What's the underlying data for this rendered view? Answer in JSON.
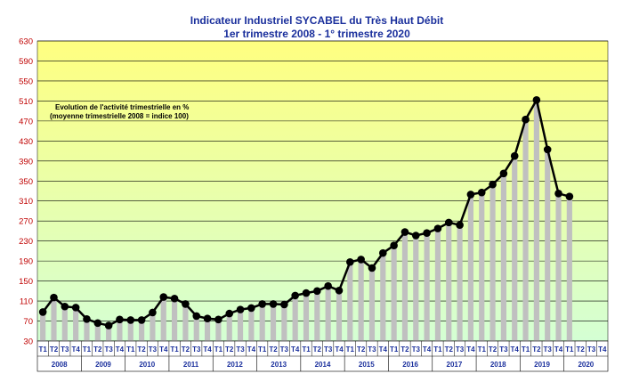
{
  "chart_data": {
    "type": "bar",
    "title": "Indicateur Industriel SYCABEL du Très Haut Débit",
    "subtitle": "1er trimestre 2008 - 1° trimestre 2020",
    "annotation": [
      "Evolution de l'activité trimestrielle en %",
      "(moyenne trimestrielle 2008 = indice 100)"
    ],
    "ylim": [
      30,
      630
    ],
    "yticks": [
      30,
      70,
      110,
      150,
      190,
      230,
      270,
      310,
      350,
      390,
      430,
      470,
      510,
      550,
      590,
      630
    ],
    "grid": true,
    "quarter_labels": [
      "T1",
      "T2",
      "T3",
      "T4"
    ],
    "years": [
      "2008",
      "2009",
      "2010",
      "2011",
      "2012",
      "2013",
      "2014",
      "2015",
      "2016",
      "2017",
      "2018",
      "2019",
      "2020"
    ],
    "values": [
      88,
      117,
      99,
      97,
      74,
      66,
      61,
      73,
      72,
      72,
      87,
      118,
      115,
      104,
      80,
      75,
      73,
      85,
      93,
      96,
      104,
      104,
      103,
      121,
      126,
      130,
      140,
      131,
      188,
      193,
      176,
      206,
      221,
      248,
      241,
      246,
      255,
      267,
      262,
      323,
      327,
      343,
      365,
      400,
      473,
      512,
      413,
      325,
      319
    ],
    "colors": {
      "bars": "#c0c0c0",
      "line": "#000000",
      "title": "#1a2f9c",
      "yticks": "#c00000",
      "bg_top": "#ffff80",
      "bg_bottom": "#ccffcc"
    }
  }
}
